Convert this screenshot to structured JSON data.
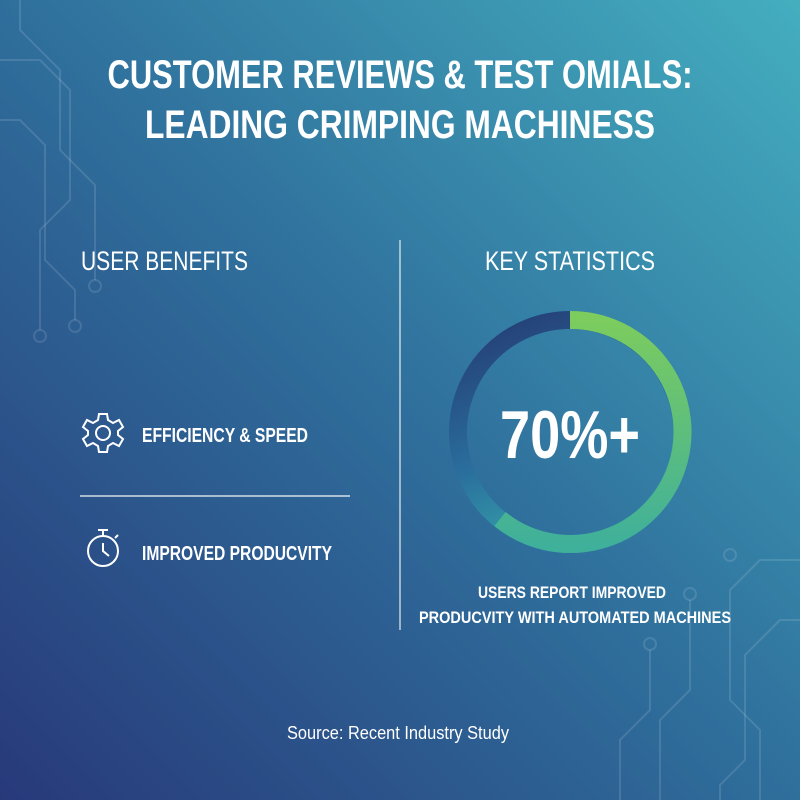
{
  "header": {
    "title_line1": "CUSTOMER REVIEWS & TEST OMIALS:",
    "title_line2": "LEADING CRIMPING MACHINESS"
  },
  "benefits": {
    "heading": "USER BENEFITS",
    "items": [
      "EFFICIENCY & SPEED",
      "IMPROVED PRODUCVITY"
    ]
  },
  "statistics": {
    "heading": "KEY STATISTICS",
    "stat": "70%+",
    "caption_line1": "USERS REPORT IMPROVED",
    "caption_line2": "PRODUCVITY WITH AUTOMATED MACHINES"
  },
  "footer": {
    "source": "Source: Recent Industry Study"
  }
}
